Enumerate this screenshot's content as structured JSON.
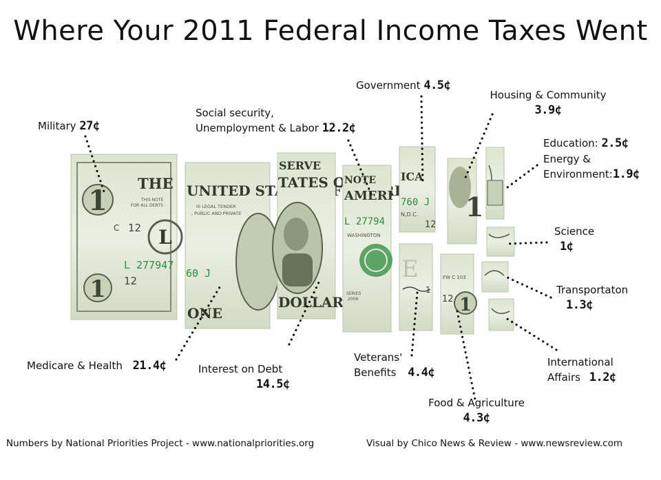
{
  "title": "Where Your 2011 Federal Income Taxes Went",
  "categories": [
    {
      "id": "military",
      "label": "Military",
      "amount": "27¢",
      "value": 27.0
    },
    {
      "id": "social-security",
      "label_line1": "Social security,",
      "label_line2": "Unemployment & Labor",
      "amount": "12.2¢",
      "value": 12.2
    },
    {
      "id": "government",
      "label": "Government",
      "amount": "4.5¢",
      "value": 4.5
    },
    {
      "id": "housing",
      "label": "Housing & Community",
      "amount": "3.9¢",
      "value": 3.9
    },
    {
      "id": "education",
      "label": "Education:",
      "amount": "2.5¢",
      "value": 2.5
    },
    {
      "id": "energy",
      "label_line1": "Energy &",
      "label_line2": "Environment:",
      "amount": "1.9¢",
      "value": 1.9
    },
    {
      "id": "science",
      "label": "Science",
      "amount": "1¢",
      "value": 1.0
    },
    {
      "id": "transportation",
      "label": "Transportaton",
      "amount": "1.3¢",
      "value": 1.3
    },
    {
      "id": "international",
      "label_line1": "International",
      "label_line2": "Affairs",
      "amount": "1.2¢",
      "value": 1.2
    },
    {
      "id": "food",
      "label": "Food & Agriculture",
      "amount": "4.3¢",
      "value": 4.3
    },
    {
      "id": "veterans",
      "label_line1": "Veterans'",
      "label_line2": "Benefits",
      "amount": "4.4¢",
      "value": 4.4
    },
    {
      "id": "interest",
      "label": "Interest on Debt",
      "amount": "14.5¢",
      "value": 14.5
    },
    {
      "id": "medicare",
      "label": "Medicare & Health",
      "amount": "21.4¢",
      "value": 21.4
    }
  ],
  "bill": {
    "top_text_left": "THE",
    "top_text": "UNITED STATES OF AMERICA",
    "note": "NOTE",
    "serial": "L 27794760 J",
    "serial_frag1": "L 277947",
    "serial_frag2": "60 J",
    "serial_frag3": "760 J",
    "serial_frag4": "L 27794",
    "letter": "L",
    "plate": "12",
    "plate_frag": "12",
    "frag_c": "C",
    "frag_series": "SERIES",
    "frag_year": "2006",
    "one": "ONE",
    "dollar": "DOLLAR",
    "serve": "SERVE",
    "digit": "1",
    "legal_tender": "IS LEGAL TENDER",
    "legal_tender2": ", PUBLIC AND PRIVATE",
    "this_note": "THIS NOTE",
    "for_all": "FOR ALL DEBTS",
    "washington": "WASHINGTON",
    "dc": "N,D.C.",
    "frag_ica": "ICA",
    "frag_tates": "TATES OF",
    "frag_ameri": "AMERI",
    "frag_fw": "FW C 103"
  },
  "credits": {
    "left": "Numbers by National Priorities Project - www.nationalpriorities.org",
    "right": "Visual by Chico News & Review - www.newsreview.com"
  },
  "colors": {
    "bill_light": "#e6ecd8",
    "bill_mid": "#aab89a",
    "bill_dark": "#3d4a38",
    "serial_green": "#2e8b3e",
    "dots": "#111111"
  }
}
